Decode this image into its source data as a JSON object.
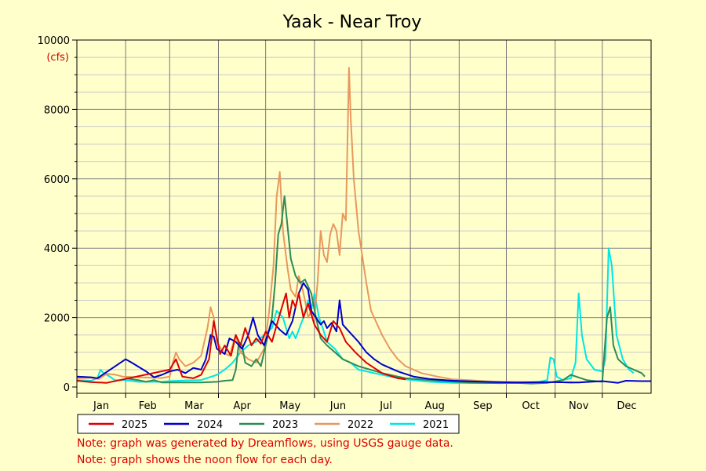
{
  "chart_data": {
    "type": "line",
    "title": "Yaak - Near Troy",
    "y_unit": "(cfs)",
    "ylim": [
      0,
      10000
    ],
    "y_ticks": [
      0,
      2000,
      4000,
      6000,
      8000,
      10000
    ],
    "xlim": [
      1,
      366
    ],
    "x_unit": "day of year",
    "months": [
      "Jan",
      "Feb",
      "Mar",
      "Apr",
      "May",
      "Jun",
      "Jul",
      "Aug",
      "Sep",
      "Oct",
      "Nov",
      "Dec"
    ],
    "month_starts": [
      1,
      32,
      60,
      91,
      121,
      152,
      182,
      213,
      244,
      274,
      305,
      335
    ],
    "grid": true,
    "legend_placement": "bottom-left",
    "series": [
      {
        "name": "2025",
        "color": "#dd0000",
        "points": [
          [
            1,
            180
          ],
          [
            10,
            140
          ],
          [
            20,
            120
          ],
          [
            60,
            500
          ],
          [
            64,
            800
          ],
          [
            68,
            300
          ],
          [
            75,
            250
          ],
          [
            80,
            350
          ],
          [
            85,
            800
          ],
          [
            88,
            1900
          ],
          [
            92,
            950
          ],
          [
            95,
            1200
          ],
          [
            99,
            900
          ],
          [
            102,
            1500
          ],
          [
            105,
            1200
          ],
          [
            108,
            1700
          ],
          [
            112,
            1200
          ],
          [
            115,
            1400
          ],
          [
            118,
            1250
          ],
          [
            121,
            1600
          ],
          [
            125,
            1300
          ],
          [
            130,
            2100
          ],
          [
            134,
            2700
          ],
          [
            136,
            2000
          ],
          [
            138,
            2500
          ],
          [
            140,
            2300
          ],
          [
            142,
            2700
          ],
          [
            145,
            2000
          ],
          [
            148,
            2400
          ],
          [
            152,
            1800
          ],
          [
            156,
            1500
          ],
          [
            160,
            1300
          ],
          [
            164,
            1900
          ],
          [
            168,
            1700
          ],
          [
            172,
            1300
          ],
          [
            178,
            1000
          ],
          [
            185,
            700
          ],
          [
            195,
            400
          ],
          [
            205,
            250
          ],
          [
            210,
            220
          ]
        ]
      },
      {
        "name": "2024",
        "color": "#0000cc",
        "points": [
          [
            1,
            300
          ],
          [
            10,
            280
          ],
          [
            14,
            250
          ],
          [
            32,
            800
          ],
          [
            36,
            700
          ],
          [
            45,
            450
          ],
          [
            50,
            280
          ],
          [
            55,
            350
          ],
          [
            60,
            450
          ],
          [
            65,
            500
          ],
          [
            70,
            400
          ],
          [
            75,
            550
          ],
          [
            80,
            500
          ],
          [
            83,
            800
          ],
          [
            86,
            1500
          ],
          [
            88,
            1450
          ],
          [
            90,
            1100
          ],
          [
            95,
            950
          ],
          [
            98,
            1400
          ],
          [
            102,
            1300
          ],
          [
            106,
            1100
          ],
          [
            110,
            1500
          ],
          [
            113,
            2000
          ],
          [
            116,
            1500
          ],
          [
            120,
            1200
          ],
          [
            125,
            1900
          ],
          [
            130,
            1650
          ],
          [
            134,
            1500
          ],
          [
            138,
            1900
          ],
          [
            142,
            2700
          ],
          [
            145,
            3000
          ],
          [
            148,
            2800
          ],
          [
            150,
            2200
          ],
          [
            153,
            2000
          ],
          [
            156,
            1800
          ],
          [
            158,
            1900
          ],
          [
            160,
            1700
          ],
          [
            163,
            1850
          ],
          [
            166,
            1600
          ],
          [
            168,
            2500
          ],
          [
            170,
            1800
          ],
          [
            174,
            1600
          ],
          [
            180,
            1300
          ],
          [
            185,
            1000
          ],
          [
            190,
            800
          ],
          [
            195,
            650
          ],
          [
            205,
            450
          ],
          [
            215,
            300
          ],
          [
            225,
            230
          ],
          [
            240,
            180
          ],
          [
            260,
            150
          ],
          [
            280,
            130
          ],
          [
            300,
            140
          ],
          [
            320,
            130
          ],
          [
            335,
            170
          ],
          [
            345,
            120
          ],
          [
            350,
            180
          ],
          [
            360,
            170
          ],
          [
            366,
            170
          ]
        ]
      },
      {
        "name": "2023",
        "color": "#2e8b57",
        "points": [
          [
            32,
            250
          ],
          [
            40,
            200
          ],
          [
            45,
            150
          ],
          [
            50,
            200
          ],
          [
            55,
            130
          ],
          [
            70,
            130
          ],
          [
            80,
            130
          ],
          [
            90,
            150
          ],
          [
            95,
            180
          ],
          [
            100,
            200
          ],
          [
            102,
            500
          ],
          [
            104,
            1300
          ],
          [
            106,
            1200
          ],
          [
            108,
            700
          ],
          [
            112,
            600
          ],
          [
            115,
            800
          ],
          [
            118,
            600
          ],
          [
            122,
            1400
          ],
          [
            125,
            2000
          ],
          [
            127,
            3000
          ],
          [
            129,
            4400
          ],
          [
            131,
            4700
          ],
          [
            133,
            5500
          ],
          [
            135,
            4600
          ],
          [
            137,
            3700
          ],
          [
            140,
            3200
          ],
          [
            143,
            3000
          ],
          [
            146,
            3100
          ],
          [
            150,
            2700
          ],
          [
            153,
            2000
          ],
          [
            156,
            1400
          ],
          [
            160,
            1200
          ],
          [
            165,
            1000
          ],
          [
            170,
            800
          ],
          [
            180,
            600
          ],
          [
            195,
            400
          ],
          [
            210,
            250
          ],
          [
            230,
            180
          ],
          [
            250,
            130
          ],
          [
            270,
            110
          ],
          [
            280,
            120
          ],
          [
            290,
            100
          ],
          [
            300,
            120
          ],
          [
            310,
            200
          ],
          [
            315,
            350
          ],
          [
            325,
            200
          ],
          [
            335,
            150
          ],
          [
            338,
            2000
          ],
          [
            340,
            2300
          ],
          [
            342,
            1200
          ],
          [
            345,
            800
          ],
          [
            350,
            600
          ],
          [
            355,
            500
          ],
          [
            360,
            400
          ],
          [
            362,
            300
          ]
        ]
      },
      {
        "name": "2022",
        "color": "#e8985e",
        "points": [
          [
            1,
            250
          ],
          [
            10,
            270
          ],
          [
            15,
            230
          ],
          [
            20,
            380
          ],
          [
            25,
            360
          ],
          [
            30,
            300
          ],
          [
            40,
            280
          ],
          [
            55,
            260
          ],
          [
            60,
            300
          ],
          [
            62,
            700
          ],
          [
            64,
            1000
          ],
          [
            66,
            800
          ],
          [
            70,
            600
          ],
          [
            75,
            700
          ],
          [
            80,
            900
          ],
          [
            84,
            1700
          ],
          [
            86,
            2300
          ],
          [
            88,
            2000
          ],
          [
            90,
            1300
          ],
          [
            94,
            1000
          ],
          [
            98,
            900
          ],
          [
            102,
            1500
          ],
          [
            105,
            1000
          ],
          [
            110,
            800
          ],
          [
            115,
            700
          ],
          [
            120,
            1100
          ],
          [
            123,
            2100
          ],
          [
            126,
            3500
          ],
          [
            128,
            5500
          ],
          [
            130,
            6200
          ],
          [
            132,
            4500
          ],
          [
            135,
            3400
          ],
          [
            137,
            2800
          ],
          [
            140,
            2600
          ],
          [
            142,
            3200
          ],
          [
            144,
            2900
          ],
          [
            146,
            2500
          ],
          [
            148,
            2000
          ],
          [
            150,
            2200
          ],
          [
            152,
            2000
          ],
          [
            154,
            3000
          ],
          [
            156,
            4500
          ],
          [
            158,
            3800
          ],
          [
            160,
            3600
          ],
          [
            162,
            4400
          ],
          [
            164,
            4700
          ],
          [
            166,
            4500
          ],
          [
            168,
            3800
          ],
          [
            170,
            5000
          ],
          [
            172,
            4800
          ],
          [
            174,
            9200
          ],
          [
            175,
            7800
          ],
          [
            177,
            6000
          ],
          [
            180,
            4500
          ],
          [
            185,
            3000
          ],
          [
            188,
            2200
          ],
          [
            192,
            1800
          ],
          [
            195,
            1500
          ],
          [
            200,
            1100
          ],
          [
            205,
            800
          ],
          [
            210,
            600
          ],
          [
            220,
            400
          ],
          [
            230,
            300
          ],
          [
            240,
            220
          ],
          [
            250,
            200
          ],
          [
            260,
            170
          ],
          [
            270,
            150
          ],
          [
            290,
            140
          ],
          [
            300,
            120
          ],
          [
            305,
            150
          ],
          [
            315,
            120
          ],
          [
            325,
            150
          ]
        ]
      },
      {
        "name": "2021",
        "color": "#00e5e5",
        "points": [
          [
            1,
            200
          ],
          [
            10,
            180
          ],
          [
            14,
            250
          ],
          [
            16,
            500
          ],
          [
            18,
            400
          ],
          [
            22,
            300
          ],
          [
            25,
            200
          ],
          [
            30,
            200
          ],
          [
            35,
            180
          ],
          [
            40,
            150
          ],
          [
            55,
            150
          ],
          [
            60,
            170
          ],
          [
            70,
            190
          ],
          [
            80,
            200
          ],
          [
            90,
            350
          ],
          [
            95,
            500
          ],
          [
            100,
            700
          ],
          [
            105,
            1000
          ],
          [
            110,
            1200
          ],
          [
            115,
            1300
          ],
          [
            120,
            1500
          ],
          [
            125,
            1700
          ],
          [
            128,
            2200
          ],
          [
            132,
            2000
          ],
          [
            134,
            1700
          ],
          [
            136,
            1400
          ],
          [
            138,
            1600
          ],
          [
            140,
            1400
          ],
          [
            145,
            2000
          ],
          [
            148,
            2500
          ],
          [
            150,
            2200
          ],
          [
            152,
            2700
          ],
          [
            155,
            2000
          ],
          [
            158,
            1600
          ],
          [
            160,
            1300
          ],
          [
            165,
            1100
          ],
          [
            170,
            800
          ],
          [
            175,
            700
          ],
          [
            180,
            500
          ],
          [
            190,
            400
          ],
          [
            200,
            300
          ],
          [
            210,
            220
          ],
          [
            225,
            150
          ],
          [
            240,
            120
          ],
          [
            260,
            110
          ],
          [
            280,
            120
          ],
          [
            295,
            150
          ],
          [
            300,
            200
          ],
          [
            302,
            850
          ],
          [
            304,
            800
          ],
          [
            306,
            300
          ],
          [
            310,
            200
          ],
          [
            315,
            250
          ],
          [
            318,
            700
          ],
          [
            320,
            2700
          ],
          [
            322,
            1500
          ],
          [
            325,
            800
          ],
          [
            330,
            500
          ],
          [
            335,
            450
          ],
          [
            337,
            800
          ],
          [
            339,
            4000
          ],
          [
            341,
            3500
          ],
          [
            344,
            1500
          ],
          [
            348,
            800
          ],
          [
            352,
            500
          ],
          [
            355,
            400
          ]
        ]
      }
    ]
  },
  "notes": [
    "Note: graph was generated by Dreamflows, using USGS gauge data.",
    "Note: graph shows the noon flow for each day."
  ]
}
